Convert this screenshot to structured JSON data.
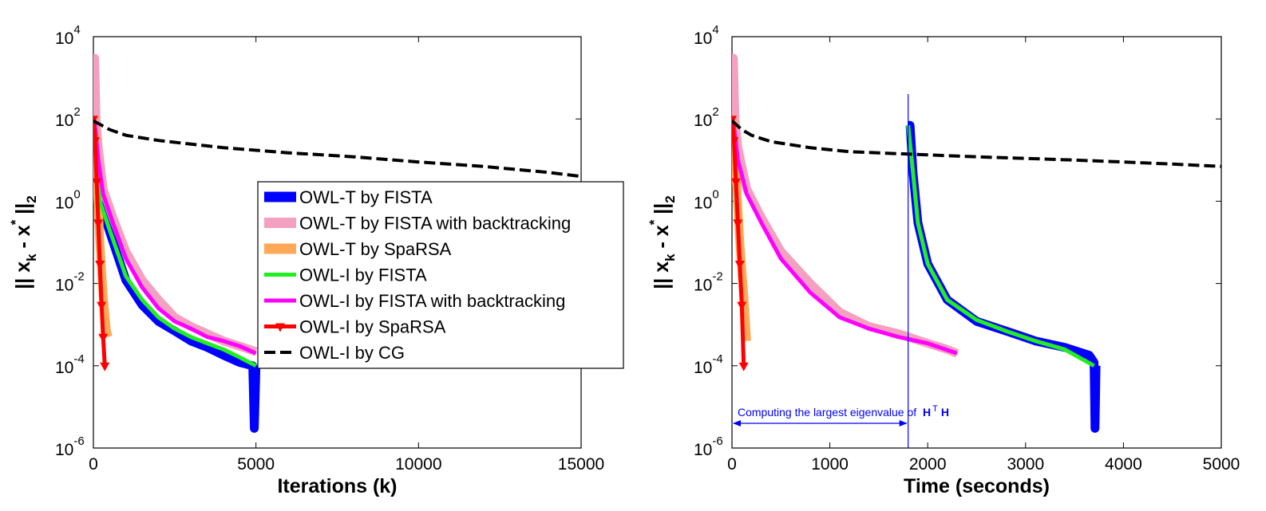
{
  "figure": {
    "ylabel_parts": {
      "open": "|| ",
      "x": "x",
      "k": "k",
      "minus": " - ",
      "x2": "x",
      "star": "*",
      "close": " ||",
      "two": "2"
    },
    "ytick_base": "10",
    "ytick_exponents": [
      "4",
      "2",
      "0",
      "-2",
      "-4",
      "-6"
    ]
  },
  "chart_data": [
    {
      "type": "line",
      "xlabel": "Iterations (k)",
      "ylabel": "|| x_k - x* ||_2",
      "xlim": [
        0,
        15000
      ],
      "ylim": [
        1e-06,
        10000.0
      ],
      "yscale": "log",
      "grid": false,
      "xticks": [
        "0",
        "5000",
        "10000",
        "15000"
      ],
      "legend": {
        "placement": "center-right",
        "entries": [
          "OWL-T by FISTA",
          "OWL-T by FISTA with backtracking",
          "OWL-T by SpaRSA",
          "OWL-I by FISTA",
          "OWL-I by FISTA with backtracking",
          "OWL-I by SpaRSA",
          "OWL-I by CG"
        ]
      },
      "series": [
        {
          "name": "OWL-T by FISTA",
          "color": "#0000ff",
          "style": "thick",
          "x": [
            0,
            200,
            500,
            1000,
            1500,
            2000,
            2500,
            3000,
            3500,
            4000,
            4500,
            4900,
            4950,
            5000
          ],
          "y": [
            100,
            1.0,
            0.18,
            0.012,
            0.003,
            0.0012,
            0.0007,
            0.0004,
            0.00028,
            0.00018,
            0.00012,
            0.0001,
            3e-06,
            0.0001
          ]
        },
        {
          "name": "OWL-T by FISTA with backtracking",
          "color": "#f4a0c0",
          "style": "thick",
          "x": [
            0,
            40,
            80,
            150,
            300,
            600,
            1000,
            1500,
            2000,
            2500,
            3000,
            3500,
            4000,
            4500,
            5000
          ],
          "y": [
            3000,
            3000,
            100,
            20,
            2.0,
            0.4,
            0.06,
            0.012,
            0.004,
            0.0015,
            0.0009,
            0.0006,
            0.0004,
            0.0003,
            0.00022
          ]
        },
        {
          "name": "OWL-T by SpaRSA",
          "color": "#ffa858",
          "style": "thick",
          "x": [
            0,
            100,
            200,
            300,
            400,
            450
          ],
          "y": [
            100,
            5,
            0.1,
            0.005,
            0.0007,
            0.0005
          ]
        },
        {
          "name": "OWL-I by FISTA",
          "color": "#22ee22",
          "style": "medium",
          "x": [
            0,
            200,
            500,
            1000,
            1500,
            2000,
            2500,
            3000,
            3500,
            4000,
            4500,
            5000
          ],
          "y": [
            100,
            1.0,
            0.2,
            0.015,
            0.004,
            0.0015,
            0.0008,
            0.0005,
            0.00035,
            0.00025,
            0.00016,
            0.0001
          ]
        },
        {
          "name": "OWL-I by FISTA with backtracking",
          "color": "#ff00ff",
          "style": "medium",
          "x": [
            0,
            40,
            150,
            300,
            600,
            1000,
            1500,
            2000,
            2500,
            3000,
            3500,
            4000,
            4500,
            5000
          ],
          "y": [
            100,
            80,
            10,
            1.5,
            0.3,
            0.04,
            0.008,
            0.0025,
            0.0012,
            0.0008,
            0.0005,
            0.0004,
            0.0003,
            0.0002
          ]
        },
        {
          "name": "OWL-I by SpaRSA",
          "color": "#ff0000",
          "style": "marker",
          "x": [
            0,
            50,
            100,
            150,
            200,
            250,
            300,
            350
          ],
          "y": [
            100,
            30,
            3,
            0.3,
            0.03,
            0.003,
            0.0005,
            0.0001
          ]
        },
        {
          "name": "OWL-I by CG",
          "color": "#000000",
          "style": "dashed",
          "x": [
            0,
            500,
            1000,
            2000,
            4000,
            6000,
            8000,
            10000,
            12000,
            14000,
            15000
          ],
          "y": [
            90,
            55,
            40,
            30,
            20,
            15,
            12,
            9,
            7,
            5,
            4
          ]
        }
      ]
    },
    {
      "type": "line",
      "xlabel": "Time (seconds)",
      "ylabel": "|| x_k - x* ||_2",
      "xlim": [
        0,
        5000
      ],
      "ylim": [
        1e-06,
        10000.0
      ],
      "yscale": "log",
      "grid": false,
      "xticks": [
        "0",
        "1000",
        "2000",
        "3000",
        "4000",
        "5000"
      ],
      "annotation": {
        "text_prefix": "Computing the largest eigenvalue of ",
        "H": "H",
        "T": "T",
        "H2": "H",
        "x_start": 0,
        "x_end": 1800
      },
      "series": [
        {
          "name": "OWL-T by FISTA",
          "color": "#0000ff",
          "style": "thick",
          "x": [
            1800,
            1820,
            1850,
            1900,
            2000,
            2200,
            2500,
            2800,
            3100,
            3400,
            3650,
            3700,
            3710,
            3720
          ],
          "y": [
            70,
            70,
            5,
            0.3,
            0.03,
            0.004,
            0.0012,
            0.0007,
            0.0004,
            0.00028,
            0.00018,
            0.00012,
            3e-06,
            0.0001
          ]
        },
        {
          "name": "OWL-T by FISTA with backtracking",
          "color": "#f4a0c0",
          "style": "thick",
          "x": [
            0,
            15,
            30,
            60,
            150,
            300,
            500,
            800,
            1100,
            1400,
            1700,
            2000,
            2200,
            2300
          ],
          "y": [
            3000,
            3000,
            100,
            20,
            2.0,
            0.4,
            0.06,
            0.01,
            0.002,
            0.0009,
            0.0006,
            0.00035,
            0.00025,
            0.0002
          ]
        },
        {
          "name": "OWL-T by SpaRSA",
          "color": "#ffa858",
          "style": "thick",
          "x": [
            0,
            40,
            80,
            120,
            150
          ],
          "y": [
            100,
            5,
            0.1,
            0.005,
            0.0004
          ]
        },
        {
          "name": "OWL-I by FISTA",
          "color": "#22ee22",
          "style": "medium",
          "x": [
            1800,
            1850,
            1900,
            2000,
            2200,
            2500,
            2800,
            3100,
            3400,
            3700
          ],
          "y": [
            70,
            5,
            0.3,
            0.03,
            0.004,
            0.0013,
            0.0007,
            0.0004,
            0.00025,
            0.0001
          ]
        },
        {
          "name": "OWL-I by FISTA with backtracking",
          "color": "#ff00ff",
          "style": "medium",
          "x": [
            0,
            15,
            60,
            150,
            300,
            500,
            800,
            1100,
            1400,
            1700,
            2000,
            2300
          ],
          "y": [
            100,
            80,
            10,
            1.5,
            0.3,
            0.04,
            0.006,
            0.0015,
            0.0008,
            0.0005,
            0.00035,
            0.0002
          ]
        },
        {
          "name": "OWL-I by SpaRSA",
          "color": "#ff0000",
          "style": "marker",
          "x": [
            0,
            20,
            40,
            60,
            80,
            100,
            120
          ],
          "y": [
            100,
            30,
            3,
            0.3,
            0.03,
            0.003,
            0.0001
          ]
        },
        {
          "name": "OWL-I by CG",
          "color": "#000000",
          "style": "dashed",
          "x": [
            0,
            100,
            200,
            400,
            800,
            1200,
            1800,
            2500,
            3000,
            3500,
            4000,
            4500,
            5000
          ],
          "y": [
            90,
            55,
            40,
            28,
            20,
            16,
            14,
            12,
            11,
            10,
            9,
            8,
            7
          ]
        }
      ]
    }
  ]
}
